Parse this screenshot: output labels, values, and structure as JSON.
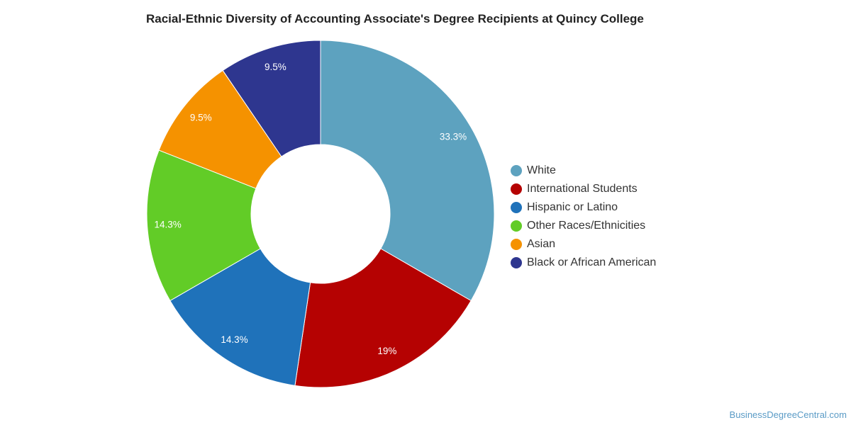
{
  "chart_data": {
    "type": "pie",
    "title": "Racial-Ethnic Diversity of Accounting Associate's Degree Recipients at Quincy College",
    "categories": [
      "White",
      "International Students",
      "Hispanic or Latino",
      "Other Races/Ethnicities",
      "Asian",
      "Black or African American"
    ],
    "values": [
      33.3,
      19,
      14.3,
      14.3,
      9.5,
      9.5
    ],
    "labels": [
      "33.3%",
      "19%",
      "14.3%",
      "14.3%",
      "9.5%",
      "9.5%"
    ],
    "colors": [
      "#5da2bf",
      "#b50202",
      "#1f72ba",
      "#62cc27",
      "#f59200",
      "#2e368f"
    ],
    "donut": true,
    "legend_position": "right"
  },
  "watermark": "BusinessDegreeCentral.com"
}
